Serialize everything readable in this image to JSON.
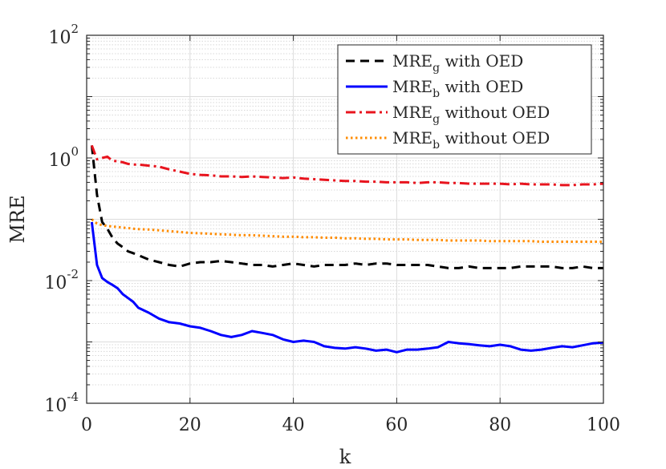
{
  "chart_data": {
    "type": "line",
    "title": "",
    "xlabel": "k",
    "ylabel": "MRE",
    "xlim": [
      0,
      100
    ],
    "ylim": [
      0.0001,
      100
    ],
    "yscale": "log",
    "grid": true,
    "minor_grid": true,
    "legend_position": "top-right",
    "x_ticks": [
      "0",
      "20",
      "40",
      "60",
      "80",
      "100"
    ],
    "y_ticks": [
      {
        "value": 0.0001,
        "base": "10",
        "exp": "-4"
      },
      {
        "value": 0.01,
        "base": "10",
        "exp": "-2"
      },
      {
        "value": 1,
        "base": "10",
        "exp": "0"
      },
      {
        "value": 100,
        "base": "10",
        "exp": "2"
      }
    ],
    "series": [
      {
        "name": "MRE_g with OED",
        "legend": {
          "main": "MRE",
          "sub": "g",
          "rest": " with OED"
        },
        "color": "#000000",
        "style": "dashed",
        "x": [
          1,
          2,
          3,
          4,
          5,
          6,
          7,
          8,
          9,
          10,
          12,
          14,
          16,
          18,
          20,
          22,
          24,
          26,
          28,
          30,
          32,
          34,
          36,
          38,
          40,
          42,
          44,
          46,
          48,
          50,
          52,
          54,
          56,
          58,
          60,
          62,
          64,
          66,
          68,
          70,
          72,
          74,
          76,
          78,
          80,
          82,
          84,
          86,
          88,
          90,
          92,
          94,
          96,
          98,
          100
        ],
        "y": [
          1.6,
          0.25,
          0.09,
          0.07,
          0.05,
          0.04,
          0.035,
          0.03,
          0.028,
          0.026,
          0.022,
          0.02,
          0.018,
          0.017,
          0.019,
          0.02,
          0.02,
          0.021,
          0.02,
          0.019,
          0.018,
          0.018,
          0.017,
          0.018,
          0.019,
          0.018,
          0.017,
          0.018,
          0.018,
          0.018,
          0.019,
          0.018,
          0.019,
          0.019,
          0.018,
          0.018,
          0.018,
          0.018,
          0.017,
          0.016,
          0.016,
          0.017,
          0.016,
          0.016,
          0.016,
          0.016,
          0.017,
          0.017,
          0.017,
          0.017,
          0.016,
          0.016,
          0.017,
          0.016,
          0.016
        ]
      },
      {
        "name": "MRE_b with OED",
        "legend": {
          "main": "MRE",
          "sub": "b",
          "rest": " with OED"
        },
        "color": "#0000ff",
        "style": "solid",
        "x": [
          1,
          2,
          3,
          4,
          5,
          6,
          7,
          8,
          9,
          10,
          12,
          14,
          16,
          18,
          20,
          22,
          24,
          26,
          28,
          30,
          32,
          34,
          36,
          38,
          40,
          42,
          44,
          46,
          48,
          50,
          52,
          54,
          56,
          58,
          60,
          62,
          64,
          66,
          68,
          70,
          72,
          74,
          76,
          78,
          80,
          82,
          84,
          86,
          88,
          90,
          92,
          94,
          96,
          98,
          100
        ],
        "y": [
          0.09,
          0.018,
          0.011,
          0.0095,
          0.0085,
          0.0075,
          0.006,
          0.0052,
          0.0045,
          0.0036,
          0.003,
          0.0024,
          0.0021,
          0.002,
          0.0018,
          0.0017,
          0.0015,
          0.0013,
          0.0012,
          0.0013,
          0.0015,
          0.0014,
          0.0013,
          0.0011,
          0.001,
          0.00105,
          0.001,
          0.00085,
          0.0008,
          0.00078,
          0.00082,
          0.00078,
          0.00072,
          0.00075,
          0.00068,
          0.00075,
          0.00075,
          0.00078,
          0.00082,
          0.001,
          0.00095,
          0.00092,
          0.00088,
          0.00085,
          0.0009,
          0.00085,
          0.00075,
          0.00072,
          0.00075,
          0.0008,
          0.00085,
          0.00082,
          0.00088,
          0.00095,
          0.00098
        ]
      },
      {
        "name": "MRE_g without OED",
        "legend": {
          "main": "MRE",
          "sub": "g",
          "rest": " without OED"
        },
        "color": "#e8141e",
        "style": "dashdot",
        "x": [
          1,
          2,
          3,
          4,
          5,
          6,
          7,
          8,
          9,
          10,
          12,
          14,
          16,
          18,
          20,
          22,
          24,
          26,
          28,
          30,
          32,
          34,
          36,
          38,
          40,
          42,
          44,
          46,
          48,
          50,
          52,
          54,
          56,
          58,
          60,
          62,
          64,
          66,
          68,
          70,
          72,
          74,
          76,
          78,
          80,
          82,
          84,
          86,
          88,
          90,
          92,
          94,
          96,
          98,
          100
        ],
        "y": [
          1.6,
          0.95,
          1.0,
          1.05,
          0.9,
          0.88,
          0.85,
          0.8,
          0.78,
          0.78,
          0.75,
          0.72,
          0.65,
          0.6,
          0.55,
          0.53,
          0.52,
          0.5,
          0.5,
          0.49,
          0.5,
          0.49,
          0.48,
          0.47,
          0.48,
          0.46,
          0.45,
          0.44,
          0.43,
          0.42,
          0.42,
          0.41,
          0.41,
          0.4,
          0.4,
          0.4,
          0.39,
          0.4,
          0.4,
          0.39,
          0.39,
          0.38,
          0.38,
          0.38,
          0.38,
          0.37,
          0.38,
          0.37,
          0.37,
          0.37,
          0.36,
          0.36,
          0.37,
          0.37,
          0.38
        ]
      },
      {
        "name": "MRE_b without OED",
        "legend": {
          "main": "MRE",
          "sub": "b",
          "rest": " without OED"
        },
        "color": "#ff8c00",
        "style": "dotted",
        "x": [
          1,
          2,
          3,
          4,
          5,
          6,
          7,
          8,
          9,
          10,
          12,
          14,
          16,
          18,
          20,
          22,
          24,
          26,
          28,
          30,
          32,
          34,
          36,
          38,
          40,
          42,
          44,
          46,
          48,
          50,
          52,
          54,
          56,
          58,
          60,
          62,
          64,
          66,
          68,
          70,
          72,
          74,
          76,
          78,
          80,
          82,
          84,
          86,
          88,
          90,
          92,
          94,
          96,
          98,
          100
        ],
        "y": [
          0.1,
          0.085,
          0.08,
          0.078,
          0.076,
          0.075,
          0.073,
          0.072,
          0.07,
          0.069,
          0.068,
          0.066,
          0.064,
          0.062,
          0.06,
          0.059,
          0.058,
          0.057,
          0.056,
          0.055,
          0.055,
          0.054,
          0.053,
          0.052,
          0.052,
          0.051,
          0.051,
          0.05,
          0.05,
          0.049,
          0.049,
          0.048,
          0.048,
          0.047,
          0.047,
          0.047,
          0.046,
          0.046,
          0.046,
          0.045,
          0.045,
          0.045,
          0.045,
          0.044,
          0.044,
          0.044,
          0.044,
          0.044,
          0.043,
          0.043,
          0.043,
          0.043,
          0.043,
          0.043,
          0.043
        ]
      }
    ]
  }
}
